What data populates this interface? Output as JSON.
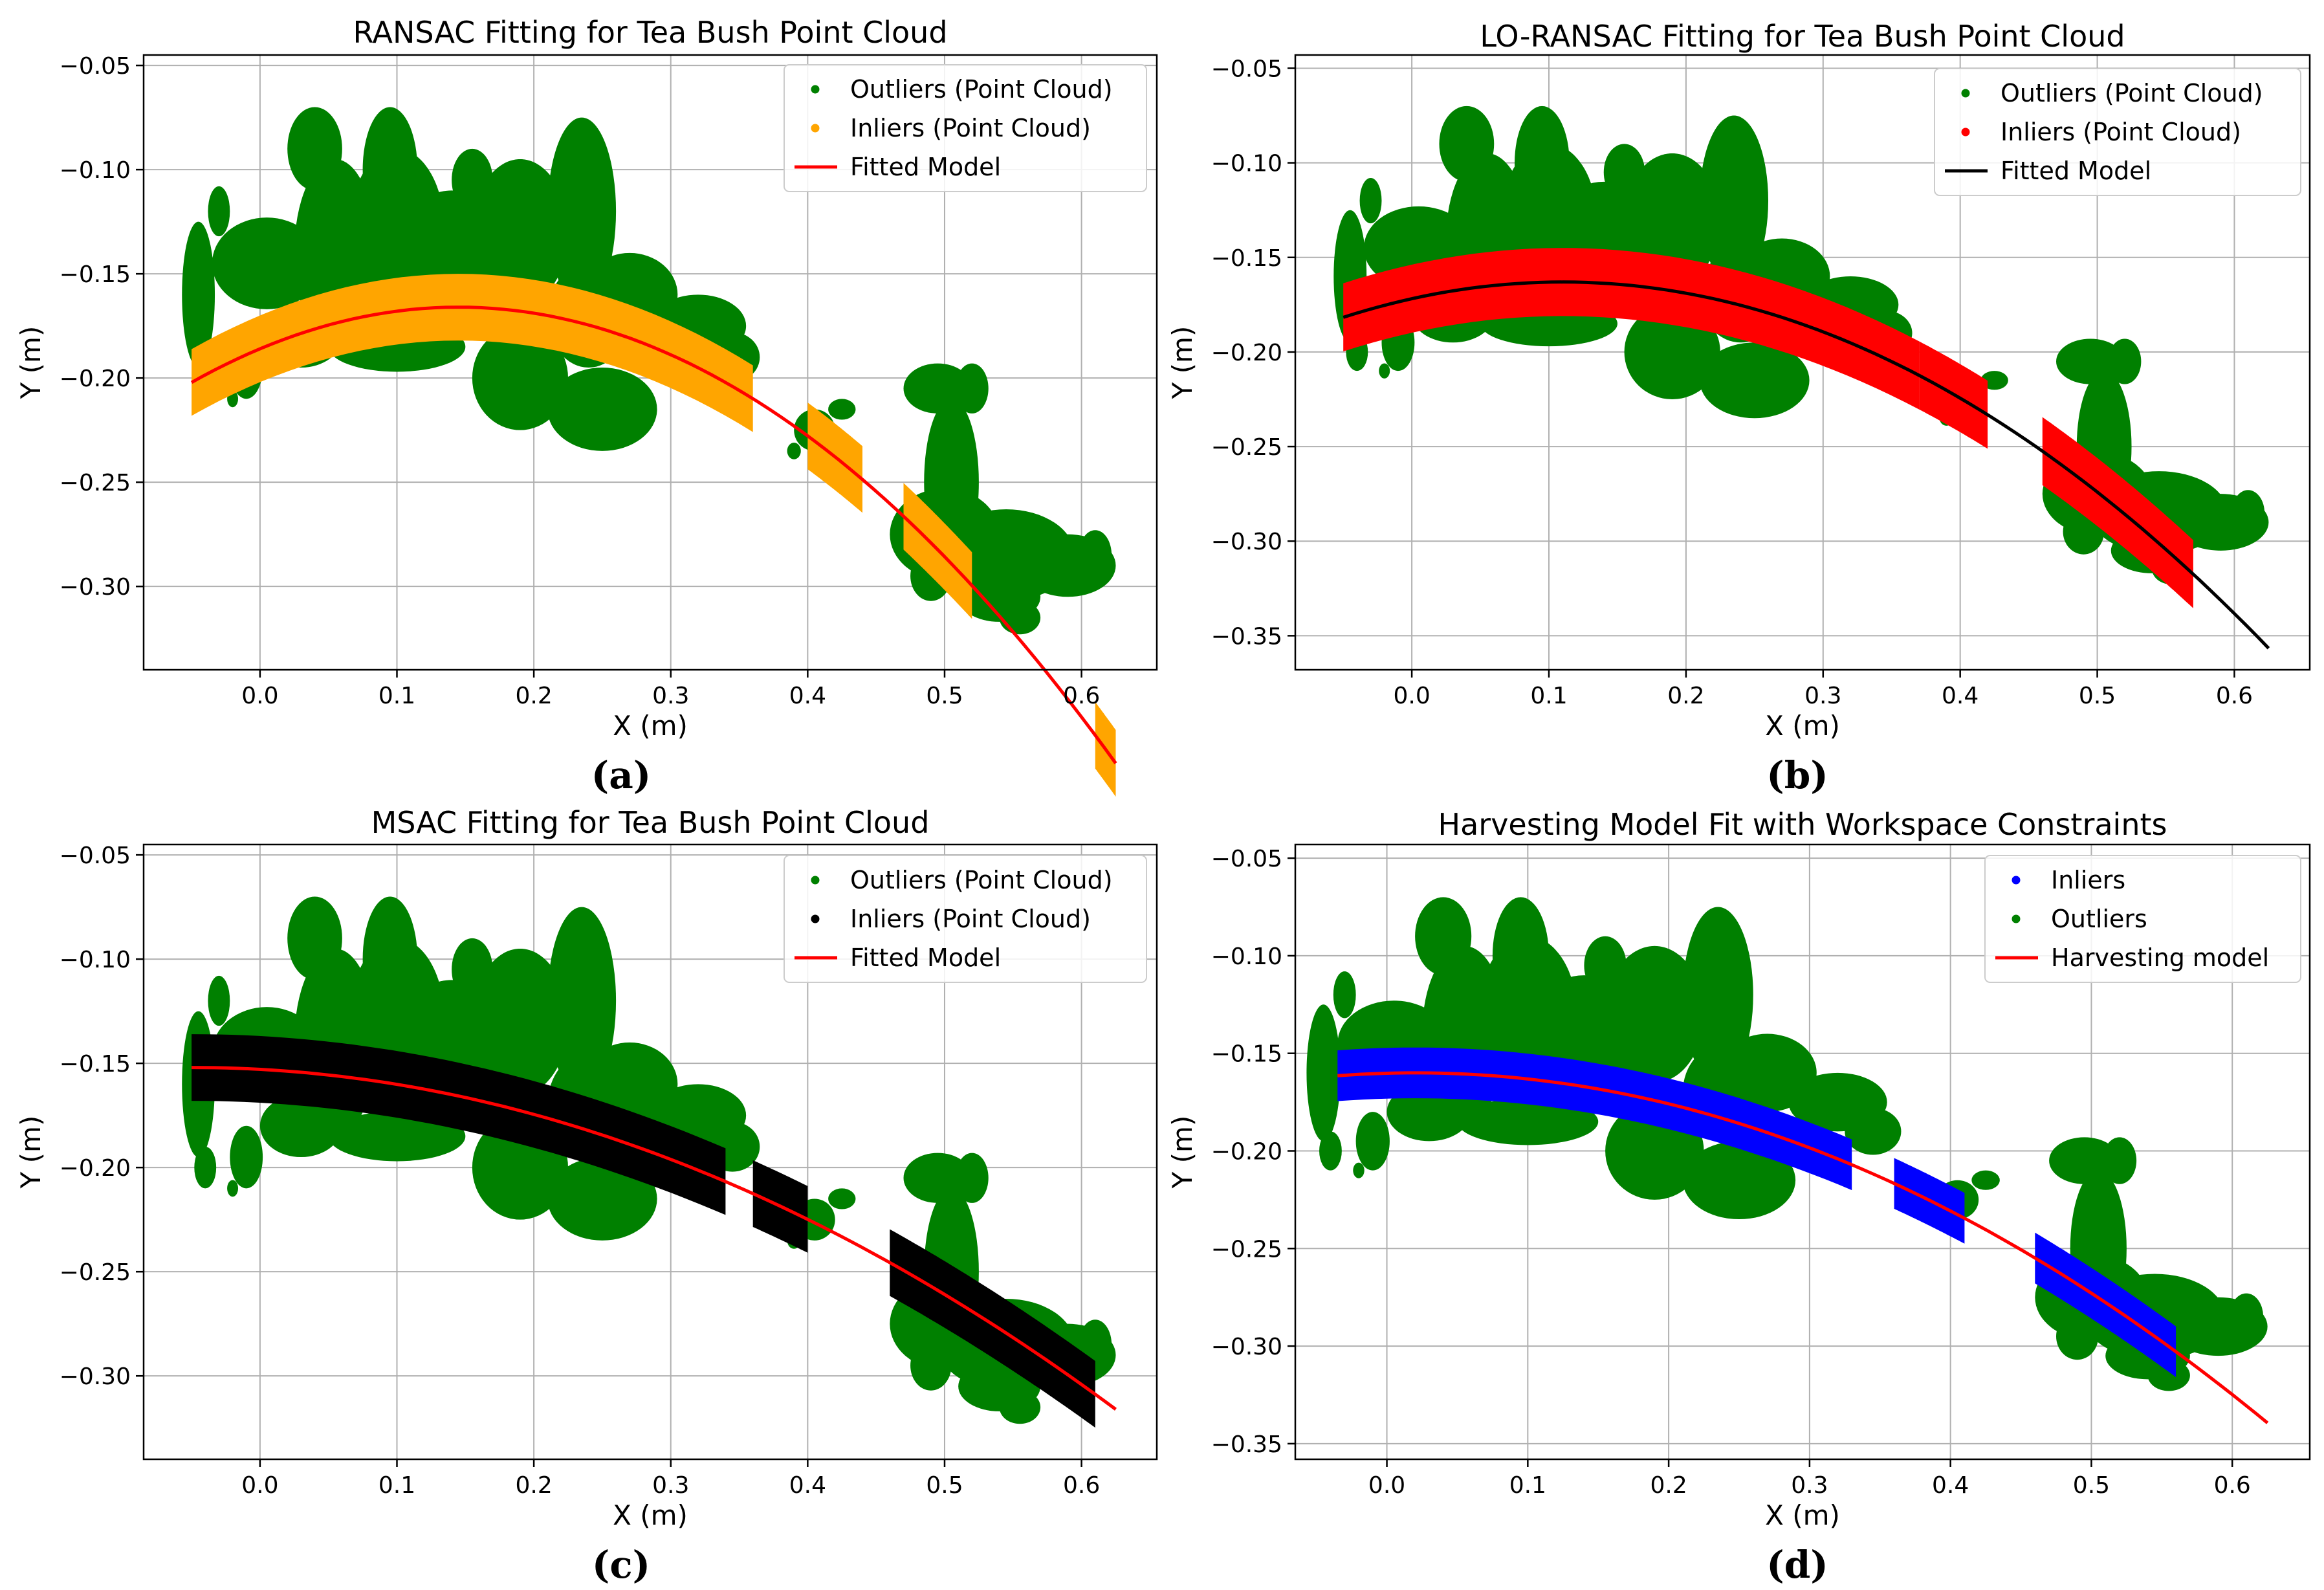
{
  "colors": {
    "outlier_green": "#008000",
    "ransac_inlier": "#FFA500",
    "lo_inlier": "#FF0000",
    "msac_inlier": "#000000",
    "harvest_inlier": "#0000FF",
    "fit_red": "#FF0000",
    "fit_black": "#000000"
  },
  "chart_data": [
    {
      "id": "a",
      "type": "scatter",
      "title": "RANSAC Fitting for Tea Bush Point Cloud",
      "xlabel": "X (m)",
      "ylabel": "Y (m)",
      "caption": "(a)",
      "xlim": [
        -0.085,
        0.655
      ],
      "ylim": [
        -0.34,
        -0.045
      ],
      "xticks": [
        0.0,
        0.1,
        0.2,
        0.3,
        0.4,
        0.5,
        0.6
      ],
      "xtick_labels": [
        "0.0",
        "0.1",
        "0.2",
        "0.3",
        "0.4",
        "0.5",
        "0.6"
      ],
      "yticks": [
        -0.05,
        -0.1,
        -0.15,
        -0.2,
        -0.25,
        -0.3
      ],
      "ytick_labels": [
        "−0.05",
        "−0.10",
        "−0.15",
        "−0.20",
        "−0.25",
        "−0.30"
      ],
      "grid": true,
      "legend_position": "top-right",
      "legend": [
        {
          "label": "Outliers (Point Cloud)",
          "kind": "dot",
          "color": "#008000"
        },
        {
          "label": "Inliers (Point Cloud)",
          "kind": "dot",
          "color": "#FFA500"
        },
        {
          "label": "Fitted Model",
          "kind": "line",
          "color": "#FF0000"
        }
      ],
      "outlier_color": "#008000",
      "inlier_color": "#FFA500",
      "inlier_band_halfwidth": 0.016,
      "inlier_x_segments": [
        [
          -0.05,
          0.36
        ],
        [
          0.4,
          0.44
        ],
        [
          0.47,
          0.52
        ],
        [
          0.61,
          0.625
        ]
      ],
      "model": {
        "color": "#FF0000",
        "x_range": [
          -0.05,
          0.625
        ],
        "vertex_x": 0.145,
        "vertex_y": -0.166,
        "a": -0.95
      }
    },
    {
      "id": "b",
      "type": "scatter",
      "title": "LO-RANSAC Fitting for Tea Bush Point Cloud",
      "xlabel": "X (m)",
      "ylabel": "Y (m)",
      "caption": "(b)",
      "xlim": [
        -0.085,
        0.655
      ],
      "ylim": [
        -0.368,
        -0.043
      ],
      "xticks": [
        0.0,
        0.1,
        0.2,
        0.3,
        0.4,
        0.5,
        0.6
      ],
      "xtick_labels": [
        "0.0",
        "0.1",
        "0.2",
        "0.3",
        "0.4",
        "0.5",
        "0.6"
      ],
      "yticks": [
        -0.05,
        -0.1,
        -0.15,
        -0.2,
        -0.25,
        -0.3,
        -0.35
      ],
      "ytick_labels": [
        "−0.05",
        "−0.10",
        "−0.15",
        "−0.20",
        "−0.25",
        "−0.30",
        "−0.35"
      ],
      "grid": true,
      "legend_position": "top-right",
      "legend": [
        {
          "label": "Outliers (Point Cloud)",
          "kind": "dot",
          "color": "#008000"
        },
        {
          "label": "Inliers (Point Cloud)",
          "kind": "dot",
          "color": "#FF0000"
        },
        {
          "label": "Fitted Model",
          "kind": "line",
          "color": "#000000"
        }
      ],
      "outlier_color": "#008000",
      "inlier_color": "#FF0000",
      "inlier_band_halfwidth": 0.018,
      "inlier_x_segments": [
        [
          -0.05,
          0.37
        ],
        [
          0.37,
          0.42
        ],
        [
          0.46,
          0.57
        ]
      ],
      "model": {
        "color": "#000000",
        "x_range": [
          -0.05,
          0.625
        ],
        "vertex_x": 0.11,
        "vertex_y": -0.163,
        "a": -0.73
      }
    },
    {
      "id": "c",
      "type": "scatter",
      "title": "MSAC Fitting for Tea Bush Point Cloud",
      "xlabel": "X (m)",
      "ylabel": "Y (m)",
      "caption": "(c)",
      "xlim": [
        -0.085,
        0.655
      ],
      "ylim": [
        -0.34,
        -0.045
      ],
      "xticks": [
        0.0,
        0.1,
        0.2,
        0.3,
        0.4,
        0.5,
        0.6
      ],
      "xtick_labels": [
        "0.0",
        "0.1",
        "0.2",
        "0.3",
        "0.4",
        "0.5",
        "0.6"
      ],
      "yticks": [
        -0.05,
        -0.1,
        -0.15,
        -0.2,
        -0.25,
        -0.3
      ],
      "ytick_labels": [
        "−0.05",
        "−0.10",
        "−0.15",
        "−0.20",
        "−0.25",
        "−0.30"
      ],
      "grid": true,
      "legend_position": "top-right",
      "legend": [
        {
          "label": "Outliers (Point Cloud)",
          "kind": "dot",
          "color": "#008000"
        },
        {
          "label": "Inliers (Point Cloud)",
          "kind": "dot",
          "color": "#000000"
        },
        {
          "label": "Fitted Model",
          "kind": "line",
          "color": "#FF0000"
        }
      ],
      "outlier_color": "#008000",
      "inlier_color": "#000000",
      "inlier_band_halfwidth": 0.016,
      "inlier_x_segments": [
        [
          -0.05,
          0.34
        ],
        [
          0.36,
          0.4
        ],
        [
          0.46,
          0.61
        ]
      ],
      "model": {
        "color": "#FF0000",
        "x_range": [
          -0.05,
          0.625
        ],
        "vertex_x": -0.05,
        "vertex_y": -0.152,
        "a": -0.36
      }
    },
    {
      "id": "d",
      "type": "scatter",
      "title": "Harvesting Model Fit with Workspace Constraints",
      "xlabel": "X (m)",
      "ylabel": "Y (m)",
      "caption": "(d)",
      "xlim": [
        -0.065,
        0.655
      ],
      "ylim": [
        -0.358,
        -0.043
      ],
      "xticks": [
        0.0,
        0.1,
        0.2,
        0.3,
        0.4,
        0.5,
        0.6
      ],
      "xtick_labels": [
        "0.0",
        "0.1",
        "0.2",
        "0.3",
        "0.4",
        "0.5",
        "0.6"
      ],
      "yticks": [
        -0.05,
        -0.1,
        -0.15,
        -0.2,
        -0.25,
        -0.3,
        -0.35
      ],
      "ytick_labels": [
        "−0.05",
        "−0.10",
        "−0.15",
        "−0.20",
        "−0.25",
        "−0.30",
        "−0.35"
      ],
      "grid": true,
      "legend_position": "top-right",
      "legend": [
        {
          "label": "Inliers",
          "kind": "dot",
          "color": "#0000FF"
        },
        {
          "label": "Outliers",
          "kind": "dot",
          "color": "#008000"
        },
        {
          "label": "Harvesting model",
          "kind": "line",
          "color": "#FF0000"
        }
      ],
      "outlier_color": "#008000",
      "inlier_color": "#0000FF",
      "inlier_band_halfwidth": 0.013,
      "inlier_x_segments": [
        [
          -0.035,
          0.33
        ],
        [
          0.36,
          0.41
        ],
        [
          0.46,
          0.56
        ]
      ],
      "model": {
        "color": "#FF0000",
        "x_range": [
          -0.035,
          0.625
        ],
        "vertex_x": 0.02,
        "vertex_y": -0.16,
        "a": -0.49
      }
    }
  ],
  "outlier_blobs": [
    {
      "cx": -0.03,
      "cy": -0.12,
      "rx": 0.008,
      "ry": 0.012
    },
    {
      "cx": -0.045,
      "cy": -0.16,
      "rx": 0.012,
      "ry": 0.035
    },
    {
      "cx": -0.01,
      "cy": -0.195,
      "rx": 0.012,
      "ry": 0.015
    },
    {
      "cx": -0.02,
      "cy": -0.21,
      "rx": 0.004,
      "ry": 0.004
    },
    {
      "cx": 0.005,
      "cy": -0.145,
      "rx": 0.04,
      "ry": 0.022
    },
    {
      "cx": 0.055,
      "cy": -0.14,
      "rx": 0.03,
      "ry": 0.045
    },
    {
      "cx": 0.04,
      "cy": -0.09,
      "rx": 0.02,
      "ry": 0.02
    },
    {
      "cx": 0.1,
      "cy": -0.13,
      "rx": 0.035,
      "ry": 0.04
    },
    {
      "cx": 0.095,
      "cy": -0.1,
      "rx": 0.02,
      "ry": 0.03
    },
    {
      "cx": 0.14,
      "cy": -0.14,
      "rx": 0.04,
      "ry": 0.03
    },
    {
      "cx": 0.155,
      "cy": -0.105,
      "rx": 0.015,
      "ry": 0.015
    },
    {
      "cx": 0.19,
      "cy": -0.13,
      "rx": 0.035,
      "ry": 0.035
    },
    {
      "cx": 0.19,
      "cy": -0.105,
      "rx": 0.012,
      "ry": 0.01
    },
    {
      "cx": 0.235,
      "cy": -0.12,
      "rx": 0.025,
      "ry": 0.045
    },
    {
      "cx": 0.24,
      "cy": -0.17,
      "rx": 0.03,
      "ry": 0.025
    },
    {
      "cx": 0.27,
      "cy": -0.16,
      "rx": 0.035,
      "ry": 0.02
    },
    {
      "cx": 0.32,
      "cy": -0.175,
      "rx": 0.035,
      "ry": 0.015
    },
    {
      "cx": 0.345,
      "cy": -0.19,
      "rx": 0.02,
      "ry": 0.012
    },
    {
      "cx": 0.25,
      "cy": -0.215,
      "rx": 0.04,
      "ry": 0.02
    },
    {
      "cx": 0.19,
      "cy": -0.2,
      "rx": 0.035,
      "ry": 0.025
    },
    {
      "cx": 0.1,
      "cy": -0.185,
      "rx": 0.05,
      "ry": 0.012
    },
    {
      "cx": 0.03,
      "cy": -0.18,
      "rx": 0.03,
      "ry": 0.015
    },
    {
      "cx": -0.04,
      "cy": -0.2,
      "rx": 0.008,
      "ry": 0.01
    },
    {
      "cx": 0.405,
      "cy": -0.225,
      "rx": 0.015,
      "ry": 0.01
    },
    {
      "cx": 0.425,
      "cy": -0.215,
      "rx": 0.01,
      "ry": 0.005
    },
    {
      "cx": 0.39,
      "cy": -0.235,
      "rx": 0.005,
      "ry": 0.004
    },
    {
      "cx": 0.495,
      "cy": -0.205,
      "rx": 0.025,
      "ry": 0.012
    },
    {
      "cx": 0.505,
      "cy": -0.25,
      "rx": 0.02,
      "ry": 0.04
    },
    {
      "cx": 0.52,
      "cy": -0.205,
      "rx": 0.012,
      "ry": 0.012
    },
    {
      "cx": 0.5,
      "cy": -0.275,
      "rx": 0.04,
      "ry": 0.022
    },
    {
      "cx": 0.545,
      "cy": -0.285,
      "rx": 0.05,
      "ry": 0.022
    },
    {
      "cx": 0.59,
      "cy": -0.29,
      "rx": 0.035,
      "ry": 0.015
    },
    {
      "cx": 0.54,
      "cy": -0.305,
      "rx": 0.03,
      "ry": 0.012
    },
    {
      "cx": 0.555,
      "cy": -0.315,
      "rx": 0.015,
      "ry": 0.008
    },
    {
      "cx": 0.49,
      "cy": -0.295,
      "rx": 0.015,
      "ry": 0.012
    },
    {
      "cx": 0.61,
      "cy": -0.285,
      "rx": 0.012,
      "ry": 0.012
    }
  ]
}
